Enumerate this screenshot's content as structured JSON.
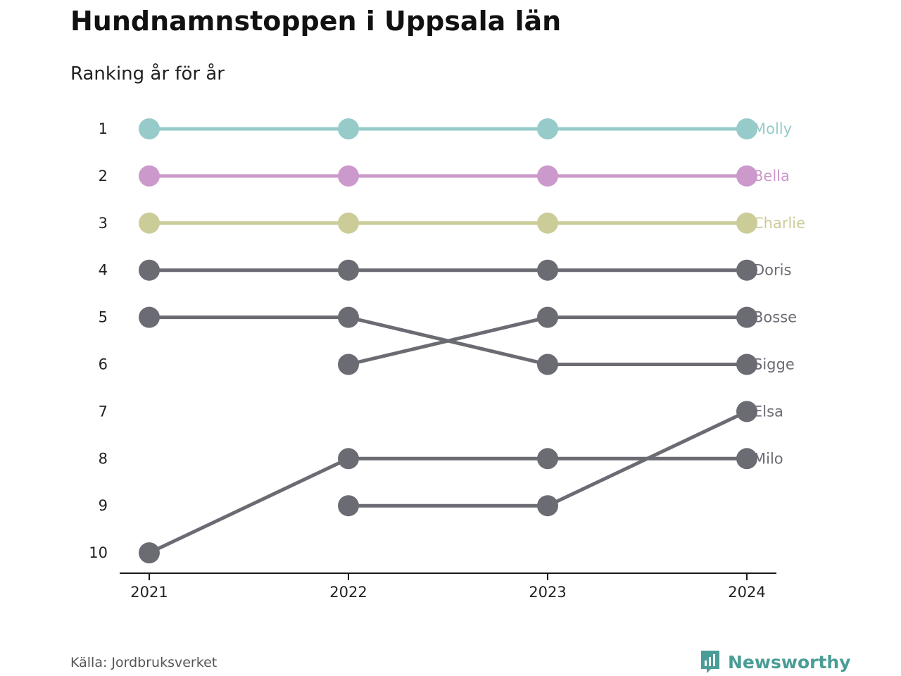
{
  "title": "Hundnamnstoppen i Uppsala län",
  "subtitle": "Ranking år för år",
  "source": "Källa: Jordbruksverket",
  "brand": {
    "name": "Newsworthy",
    "icon": "newsworthy-logo-icon",
    "color": "#4a9d96"
  },
  "colors": {
    "highlight_1": "#96cbc9",
    "highlight_2": "#cc99cc",
    "highlight_3": "#cccc99",
    "default": "#6b6b73",
    "axis": "#1a1a1a"
  },
  "chart_data": {
    "type": "line",
    "x": [
      "2021",
      "2022",
      "2023",
      "2024"
    ],
    "y_ticks": [
      1,
      2,
      3,
      4,
      5,
      6,
      7,
      8,
      9,
      10
    ],
    "y_reversed": true,
    "grid": false,
    "series": [
      {
        "name": "Molly",
        "values": [
          1,
          1,
          1,
          1
        ],
        "color": "#96cbc9"
      },
      {
        "name": "Bella",
        "values": [
          2,
          2,
          2,
          2
        ],
        "color": "#cc99cc"
      },
      {
        "name": "Charlie",
        "values": [
          3,
          3,
          3,
          3
        ],
        "color": "#cccc99"
      },
      {
        "name": "Doris",
        "values": [
          4,
          4,
          4,
          4
        ],
        "color": "#6b6b73"
      },
      {
        "name": "Bosse",
        "values": [
          null,
          6,
          5,
          5
        ],
        "color": "#6b6b73"
      },
      {
        "name": "Sigge",
        "values": [
          5,
          5,
          6,
          6
        ],
        "color": "#6b6b73"
      },
      {
        "name": "Elsa",
        "values": [
          null,
          9,
          9,
          7
        ],
        "color": "#6b6b73"
      },
      {
        "name": "Milo",
        "values": [
          10,
          8,
          8,
          8
        ],
        "color": "#6b6b73"
      }
    ]
  }
}
